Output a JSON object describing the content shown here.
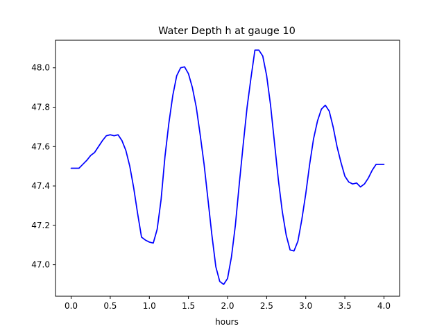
{
  "chart_data": {
    "type": "line",
    "title": "Water Depth h at gauge 10",
    "xlabel": "hours",
    "ylabel": "",
    "xlim": [
      -0.2,
      4.2
    ],
    "ylim": [
      46.84,
      48.14
    ],
    "x_ticks": [
      0.0,
      0.5,
      1.0,
      1.5,
      2.0,
      2.5,
      3.0,
      3.5,
      4.0
    ],
    "x_tick_labels": [
      "0.0",
      "0.5",
      "1.0",
      "1.5",
      "2.0",
      "2.5",
      "3.0",
      "3.5",
      "4.0"
    ],
    "y_ticks": [
      47.0,
      47.2,
      47.4,
      47.6,
      47.8,
      48.0
    ],
    "y_tick_labels": [
      "47.0",
      "47.2",
      "47.4",
      "47.6",
      "47.8",
      "48.0"
    ],
    "grid": false,
    "series": [
      {
        "color": "#0000ff",
        "x": [
          0.0,
          0.1,
          0.15,
          0.2,
          0.25,
          0.3,
          0.35,
          0.4,
          0.45,
          0.5,
          0.55,
          0.6,
          0.65,
          0.7,
          0.75,
          0.8,
          0.85,
          0.9,
          0.95,
          1.0,
          1.05,
          1.1,
          1.15,
          1.2,
          1.25,
          1.3,
          1.35,
          1.4,
          1.45,
          1.5,
          1.55,
          1.6,
          1.65,
          1.7,
          1.75,
          1.8,
          1.85,
          1.9,
          1.95,
          2.0,
          2.05,
          2.1,
          2.15,
          2.2,
          2.25,
          2.3,
          2.35,
          2.4,
          2.45,
          2.5,
          2.55,
          2.6,
          2.65,
          2.7,
          2.75,
          2.8,
          2.85,
          2.9,
          2.95,
          3.0,
          3.05,
          3.1,
          3.15,
          3.2,
          3.25,
          3.3,
          3.35,
          3.4,
          3.45,
          3.5,
          3.55,
          3.6,
          3.65,
          3.7,
          3.75,
          3.8,
          3.85,
          3.9,
          3.95,
          4.0
        ],
        "y": [
          47.49,
          47.49,
          47.51,
          47.53,
          47.555,
          47.57,
          47.6,
          47.63,
          47.655,
          47.66,
          47.655,
          47.66,
          47.63,
          47.58,
          47.5,
          47.39,
          47.26,
          47.14,
          47.125,
          47.115,
          47.11,
          47.18,
          47.33,
          47.55,
          47.72,
          47.86,
          47.96,
          48.0,
          48.005,
          47.97,
          47.9,
          47.8,
          47.66,
          47.51,
          47.33,
          47.15,
          46.99,
          46.915,
          46.9,
          46.93,
          47.04,
          47.2,
          47.41,
          47.61,
          47.8,
          47.95,
          48.09,
          48.09,
          48.06,
          47.96,
          47.81,
          47.62,
          47.43,
          47.27,
          47.15,
          47.075,
          47.07,
          47.12,
          47.23,
          47.36,
          47.51,
          47.64,
          47.73,
          47.79,
          47.81,
          47.78,
          47.7,
          47.6,
          47.52,
          47.45,
          47.42,
          47.41,
          47.415,
          47.395,
          47.41,
          47.44,
          47.48,
          47.51,
          47.51,
          47.51
        ]
      }
    ]
  }
}
